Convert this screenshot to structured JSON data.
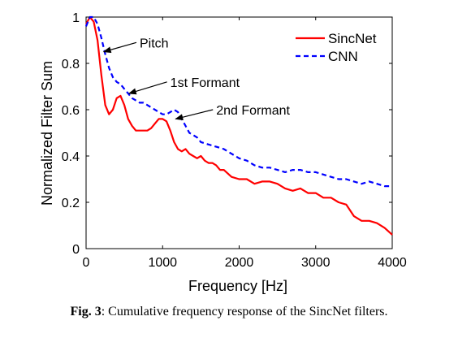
{
  "chart_data": {
    "type": "line",
    "xlabel": "Frequency [Hz]",
    "ylabel": "Normalized Filter Sum",
    "xlim": [
      0,
      4000
    ],
    "ylim": [
      0,
      1
    ],
    "xticks": [
      "0",
      "1000",
      "2000",
      "3000",
      "4000"
    ],
    "yticks": [
      "0",
      "0.2",
      "0.4",
      "0.6",
      "0.8",
      "1"
    ],
    "grid": false,
    "legend_position": "top-right",
    "series": [
      {
        "name": "SincNet",
        "color": "#ff0000",
        "style": "solid",
        "x": [
          0,
          50,
          100,
          150,
          200,
          250,
          300,
          350,
          400,
          450,
          500,
          550,
          600,
          650,
          700,
          750,
          800,
          850,
          900,
          950,
          1000,
          1050,
          1100,
          1150,
          1200,
          1250,
          1300,
          1350,
          1400,
          1450,
          1500,
          1550,
          1600,
          1650,
          1700,
          1750,
          1800,
          1900,
          2000,
          2100,
          2200,
          2300,
          2400,
          2500,
          2600,
          2700,
          2800,
          2900,
          3000,
          3100,
          3200,
          3300,
          3400,
          3500,
          3600,
          3700,
          3800,
          3900,
          4000
        ],
        "y": [
          0.97,
          1.0,
          0.98,
          0.9,
          0.75,
          0.62,
          0.58,
          0.6,
          0.65,
          0.66,
          0.62,
          0.56,
          0.53,
          0.51,
          0.51,
          0.51,
          0.51,
          0.52,
          0.54,
          0.56,
          0.56,
          0.55,
          0.51,
          0.46,
          0.43,
          0.42,
          0.43,
          0.41,
          0.4,
          0.39,
          0.4,
          0.38,
          0.37,
          0.37,
          0.36,
          0.34,
          0.34,
          0.31,
          0.3,
          0.3,
          0.28,
          0.29,
          0.29,
          0.28,
          0.26,
          0.25,
          0.26,
          0.24,
          0.24,
          0.22,
          0.22,
          0.2,
          0.19,
          0.14,
          0.12,
          0.12,
          0.11,
          0.09,
          0.06
        ]
      },
      {
        "name": "CNN",
        "color": "#0000ff",
        "style": "dashed",
        "x": [
          0,
          50,
          100,
          150,
          200,
          250,
          300,
          350,
          400,
          450,
          500,
          550,
          600,
          650,
          700,
          750,
          800,
          850,
          900,
          950,
          1000,
          1050,
          1100,
          1150,
          1200,
          1250,
          1300,
          1350,
          1400,
          1450,
          1500,
          1600,
          1700,
          1800,
          1900,
          2000,
          2100,
          2200,
          2300,
          2400,
          2500,
          2600,
          2700,
          2800,
          2900,
          3000,
          3100,
          3200,
          3300,
          3400,
          3500,
          3600,
          3700,
          3800,
          3900,
          4000
        ],
        "y": [
          0.96,
          1.0,
          1.0,
          0.97,
          0.91,
          0.84,
          0.78,
          0.74,
          0.72,
          0.71,
          0.69,
          0.67,
          0.65,
          0.64,
          0.63,
          0.63,
          0.62,
          0.61,
          0.6,
          0.59,
          0.58,
          0.58,
          0.59,
          0.6,
          0.59,
          0.56,
          0.53,
          0.5,
          0.49,
          0.48,
          0.46,
          0.45,
          0.44,
          0.43,
          0.41,
          0.39,
          0.38,
          0.36,
          0.35,
          0.35,
          0.34,
          0.33,
          0.34,
          0.34,
          0.33,
          0.33,
          0.32,
          0.31,
          0.3,
          0.3,
          0.29,
          0.28,
          0.29,
          0.28,
          0.27,
          0.27
        ]
      }
    ],
    "annotations": [
      {
        "text": "Pitch",
        "point": [
          230,
          0.85
        ],
        "text_at": [
          700,
          0.89
        ]
      },
      {
        "text": "1st Formant",
        "point": [
          560,
          0.67
        ],
        "text_at": [
          1100,
          0.72
        ]
      },
      {
        "text": "2nd Formant",
        "point": [
          1170,
          0.56
        ],
        "text_at": [
          1700,
          0.6
        ]
      }
    ]
  },
  "caption": {
    "label": "Fig. 3",
    "text": ": Cumulative frequency response of the SincNet filters."
  }
}
